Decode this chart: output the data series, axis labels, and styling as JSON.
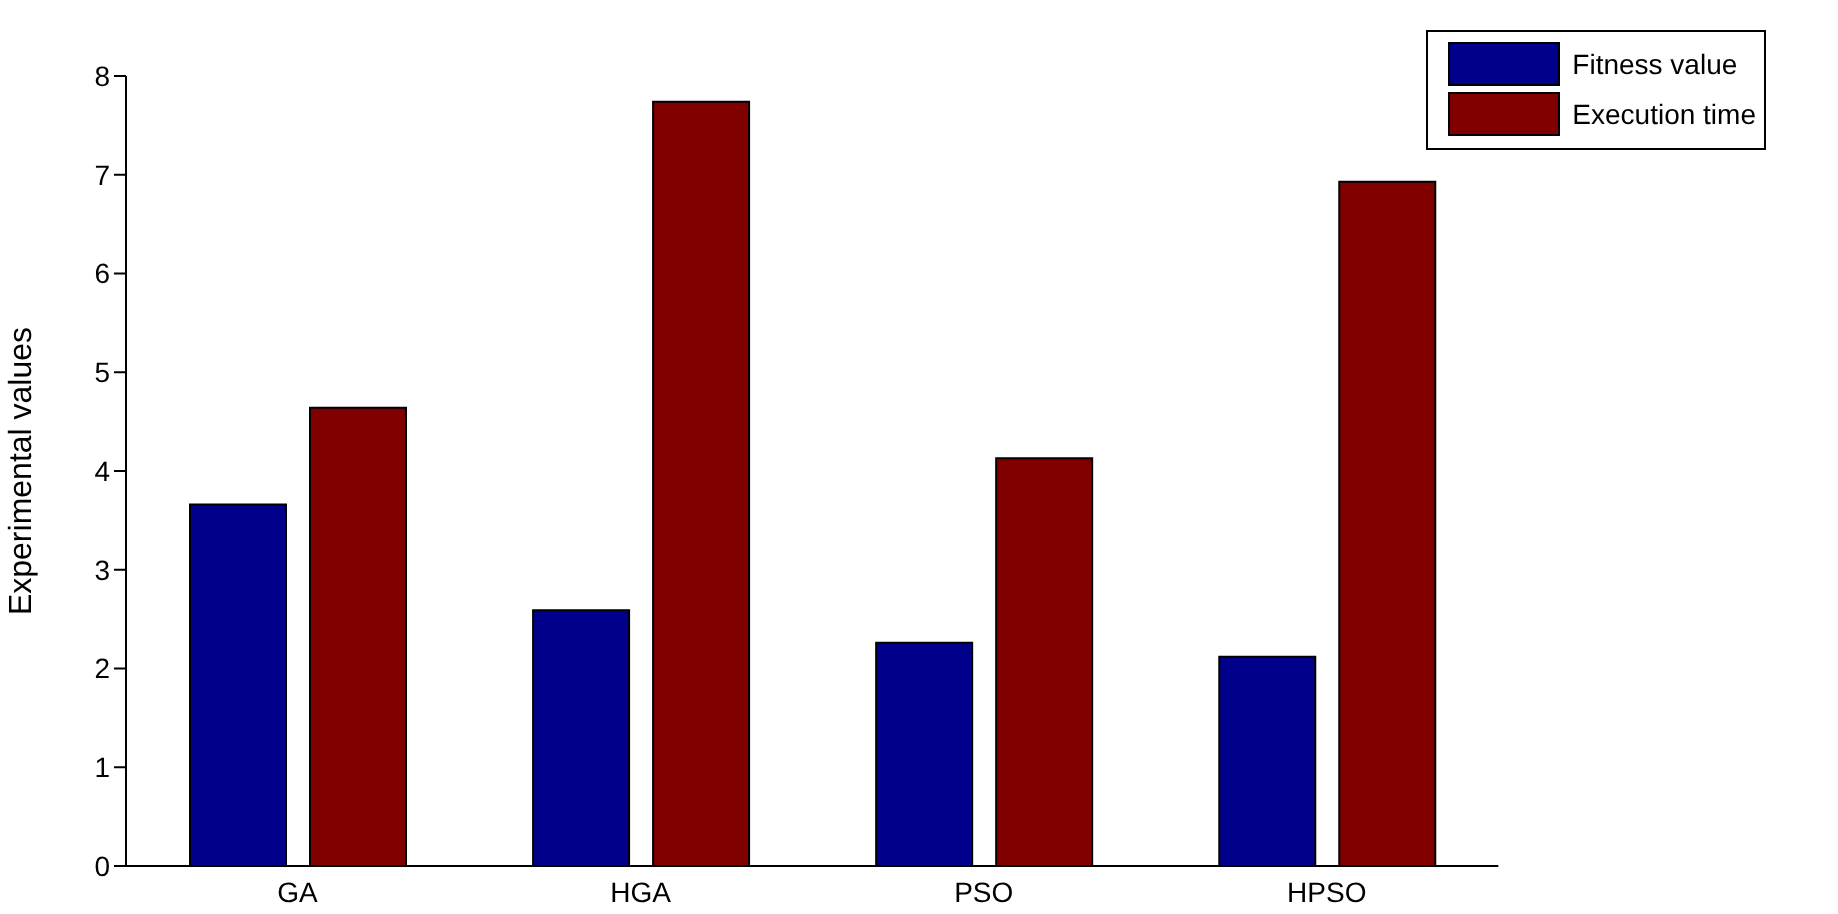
{
  "chart_data": {
    "type": "bar",
    "ylabel": "Experimental values",
    "categories": [
      "GA",
      "HGA",
      "PSO",
      "HPSO"
    ],
    "series": [
      {
        "name": "Fitness value",
        "color": "#00008b",
        "values": [
          3.66,
          2.59,
          2.26,
          2.12
        ]
      },
      {
        "name": "Execution time",
        "color": "#800000",
        "values": [
          4.64,
          7.74,
          4.13,
          6.93
        ]
      }
    ],
    "ylim": [
      0,
      8
    ],
    "yticks": [
      0,
      1,
      2,
      3,
      4,
      5,
      6,
      7,
      8
    ],
    "grid": false,
    "legend": "top right"
  }
}
